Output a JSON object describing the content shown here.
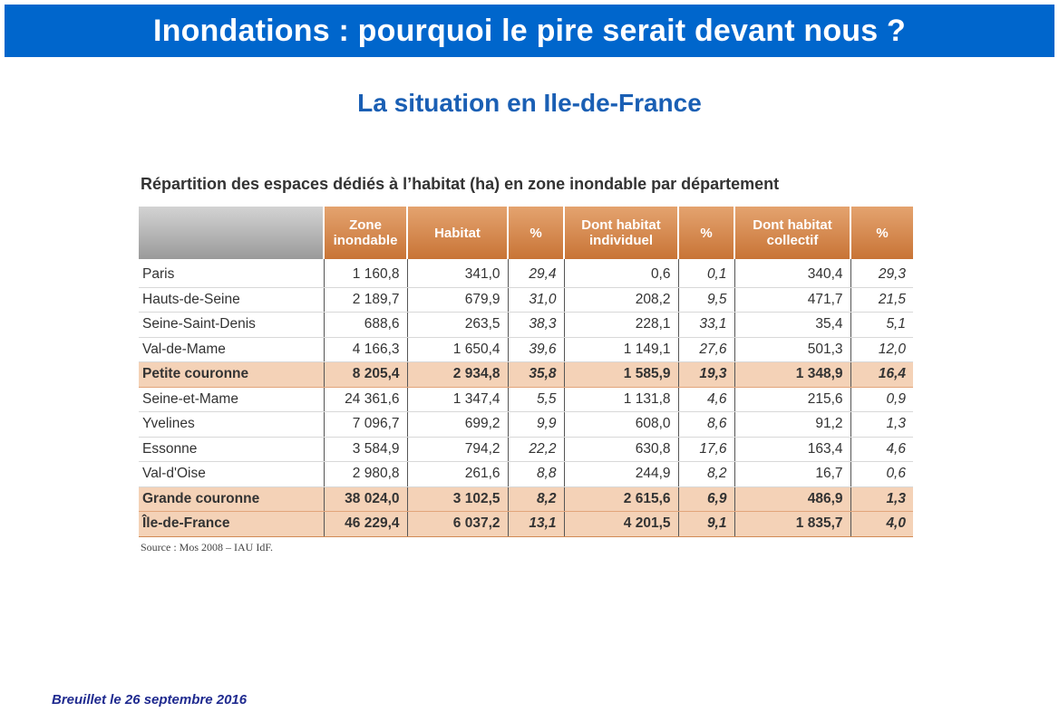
{
  "slide": {
    "title": "Inondations : pourquoi le pire serait devant nous ?",
    "subtitle": "La situation en Ile-de-France",
    "footer": "Breuillet le 26 septembre 2016",
    "colors": {
      "title_bar": "#0066cc",
      "subtitle": "#1a5fb4",
      "header_orange": "#c87436",
      "total_row": "#f4d2b7",
      "footer": "#1f2a8f"
    }
  },
  "table": {
    "caption": "Répartition des espaces dédiés à l’habitat (ha) en zone inondable par département",
    "headers": [
      "",
      "Zone inondable",
      "Habitat",
      "%",
      "Dont habitat individuel",
      "%",
      "Dont habitat collectif",
      "%"
    ],
    "rows": [
      {
        "name": "Paris",
        "zone": "1 160,8",
        "habitat": "341,0",
        "pct1": "29,4",
        "indiv": "0,6",
        "pct2": "0,1",
        "coll": "340,4",
        "pct3": "29,3"
      },
      {
        "name": "Hauts-de-Seine",
        "zone": "2 189,7",
        "habitat": "679,9",
        "pct1": "31,0",
        "indiv": "208,2",
        "pct2": "9,5",
        "coll": "471,7",
        "pct3": "21,5"
      },
      {
        "name": "Seine-Saint-Denis",
        "zone": "688,6",
        "habitat": "263,5",
        "pct1": "38,3",
        "indiv": "228,1",
        "pct2": "33,1",
        "coll": "35,4",
        "pct3": "5,1"
      },
      {
        "name": "Val-de-Mame",
        "zone": "4 166,3",
        "habitat": "1 650,4",
        "pct1": "39,6",
        "indiv": "1 149,1",
        "pct2": "27,6",
        "coll": "501,3",
        "pct3": "12,0"
      },
      {
        "name": "Petite couronne",
        "zone": "8 205,4",
        "habitat": "2 934,8",
        "pct1": "35,8",
        "indiv": "1 585,9",
        "pct2": "19,3",
        "coll": "1 348,9",
        "pct3": "16,4"
      },
      {
        "name": "Seine-et-Mame",
        "zone": "24 361,6",
        "habitat": "1 347,4",
        "pct1": "5,5",
        "indiv": "1 131,8",
        "pct2": "4,6",
        "coll": "215,6",
        "pct3": "0,9"
      },
      {
        "name": "Yvelines",
        "zone": "7 096,7",
        "habitat": "699,2",
        "pct1": "9,9",
        "indiv": "608,0",
        "pct2": "8,6",
        "coll": "91,2",
        "pct3": "1,3"
      },
      {
        "name": "Essonne",
        "zone": "3 584,9",
        "habitat": "794,2",
        "pct1": "22,2",
        "indiv": "630,8",
        "pct2": "17,6",
        "coll": "163,4",
        "pct3": "4,6"
      },
      {
        "name": "Val-d'Oise",
        "zone": "2 980,8",
        "habitat": "261,6",
        "pct1": "8,8",
        "indiv": "244,9",
        "pct2": "8,2",
        "coll": "16,7",
        "pct3": "0,6"
      },
      {
        "name": "Grande couronne",
        "zone": "38 024,0",
        "habitat": "3 102,5",
        "pct1": "8,2",
        "indiv": "2 615,6",
        "pct2": "6,9",
        "coll": "486,9",
        "pct3": "1,3"
      },
      {
        "name": "Île-de-France",
        "zone": "46 229,4",
        "habitat": "6 037,2",
        "pct1": "13,1",
        "indiv": "4 201,5",
        "pct2": "9,1",
        "coll": "1 835,7",
        "pct3": "4,0"
      }
    ],
    "source": "Source : Mos 2008 – IAU IdF."
  }
}
